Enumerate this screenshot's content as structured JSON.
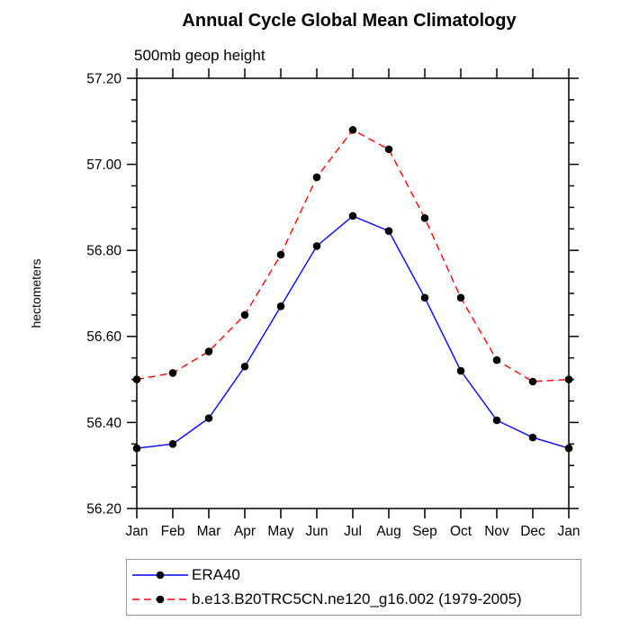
{
  "chart_data": {
    "type": "line",
    "title": "Annual Cycle Global Mean Climatology",
    "subtitle": "500mb geop height",
    "ylabel": "hectometers",
    "xlabel": "",
    "x_categories": [
      "Jan",
      "Feb",
      "Mar",
      "Apr",
      "May",
      "Jun",
      "Jul",
      "Aug",
      "Sep",
      "Oct",
      "Nov",
      "Dec",
      "Jan"
    ],
    "ylim": [
      56.2,
      57.2
    ],
    "y_major_step": 0.2,
    "y_minor_step": 0.05,
    "y_tick_labels": [
      "56.20",
      "56.40",
      "56.60",
      "56.80",
      "57.00",
      "57.20"
    ],
    "grid": false,
    "legend_position": "bottom",
    "axis_color": "#000000",
    "marker_color": "#000000",
    "series": [
      {
        "name": "ERA40",
        "color": "#0000ff",
        "style": "solid",
        "marker": "circle",
        "values": [
          56.34,
          56.35,
          56.41,
          56.53,
          56.67,
          56.81,
          56.88,
          56.845,
          56.69,
          56.52,
          56.405,
          56.365,
          56.34
        ]
      },
      {
        "name": "b.e13.B20TRC5CN.ne120_g16.002 (1979-2005)",
        "color": "#ff0000",
        "style": "dashed",
        "marker": "circle",
        "values": [
          56.5,
          56.515,
          56.565,
          56.65,
          56.79,
          56.97,
          57.08,
          57.035,
          56.875,
          56.69,
          56.545,
          56.495,
          56.5
        ]
      }
    ]
  }
}
